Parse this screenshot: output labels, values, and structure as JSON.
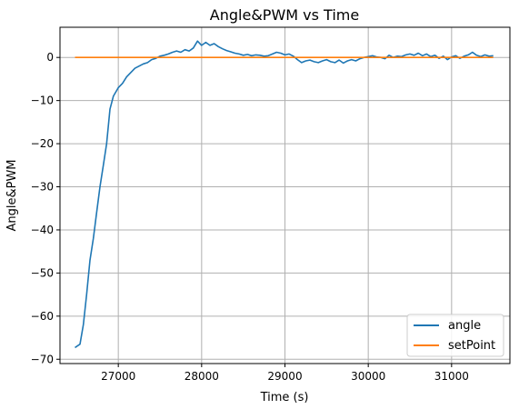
{
  "chart_data": {
    "type": "line",
    "title": "Angle&PWM vs Time",
    "xlabel": "Time (s)",
    "ylabel": "Angle&PWM",
    "xlim": [
      26300,
      31700
    ],
    "ylim": [
      -71,
      7
    ],
    "xticks": [
      27000,
      28000,
      29000,
      30000,
      31000
    ],
    "yticks": [
      0,
      -10,
      -20,
      -30,
      -40,
      -50,
      -60,
      -70
    ],
    "xtick_labels": [
      "27000",
      "28000",
      "29000",
      "30000",
      "31000"
    ],
    "ytick_labels": [
      "0",
      "−10",
      "−20",
      "−30",
      "−40",
      "−50",
      "−60",
      "−70"
    ],
    "grid": true,
    "legend_position": "lower-right",
    "series": [
      {
        "name": "angle",
        "color": "#1f77b4",
        "x": [
          26480,
          26540,
          26580,
          26620,
          26660,
          26700,
          26740,
          26780,
          26820,
          26860,
          26900,
          26940,
          27000,
          27050,
          27100,
          27150,
          27200,
          27250,
          27300,
          27350,
          27400,
          27450,
          27500,
          27550,
          27600,
          27650,
          27700,
          27750,
          27800,
          27850,
          27900,
          27950,
          28000,
          28050,
          28100,
          28150,
          28200,
          28250,
          28300,
          28350,
          28400,
          28450,
          28500,
          28550,
          28600,
          28650,
          28700,
          28750,
          28800,
          28850,
          28900,
          28950,
          29000,
          29050,
          29100,
          29150,
          29200,
          29250,
          29300,
          29350,
          29400,
          29450,
          29500,
          29550,
          29600,
          29650,
          29700,
          29750,
          29800,
          29850,
          29900,
          29950,
          30000,
          30050,
          30100,
          30150,
          30200,
          30250,
          30300,
          30350,
          30400,
          30450,
          30500,
          30550,
          30600,
          30650,
          30700,
          30750,
          30800,
          30850,
          30900,
          30950,
          31000,
          31050,
          31100,
          31150,
          31200,
          31250,
          31300,
          31350,
          31400,
          31450,
          31500
        ],
        "y": [
          -67.3,
          -66.5,
          -62,
          -55,
          -47,
          -42,
          -36,
          -30,
          -25,
          -20,
          -12,
          -9,
          -7,
          -6,
          -4.5,
          -3.5,
          -2.5,
          -2,
          -1.5,
          -1.2,
          -0.5,
          -0.2,
          0.3,
          0.5,
          0.8,
          1.2,
          1.5,
          1.2,
          1.8,
          1.5,
          2.2,
          3.8,
          2.8,
          3.5,
          2.8,
          3.2,
          2.5,
          2,
          1.6,
          1.3,
          1,
          0.8,
          0.5,
          0.7,
          0.4,
          0.6,
          0.5,
          0.3,
          0.4,
          0.8,
          1.2,
          1,
          0.6,
          0.8,
          0.3,
          -0.5,
          -1.2,
          -0.8,
          -0.6,
          -1,
          -1.2,
          -0.8,
          -0.5,
          -1,
          -1.2,
          -0.6,
          -1.3,
          -0.8,
          -0.5,
          -0.8,
          -0.3,
          0,
          0.2,
          0.4,
          0.1,
          0,
          -0.3,
          0.5,
          0,
          0.3,
          0.2,
          0.6,
          0.8,
          0.5,
          1,
          0.4,
          0.8,
          0.2,
          0.5,
          -0.2,
          0.3,
          -0.5,
          0.1,
          0.4,
          -0.2,
          0.3,
          0.6,
          1.2,
          0.5,
          0.2,
          0.6,
          0.3,
          0.4
        ]
      },
      {
        "name": "setPoint",
        "color": "#ff7f0e",
        "x": [
          26480,
          31500
        ],
        "y": [
          0,
          0
        ]
      }
    ]
  }
}
